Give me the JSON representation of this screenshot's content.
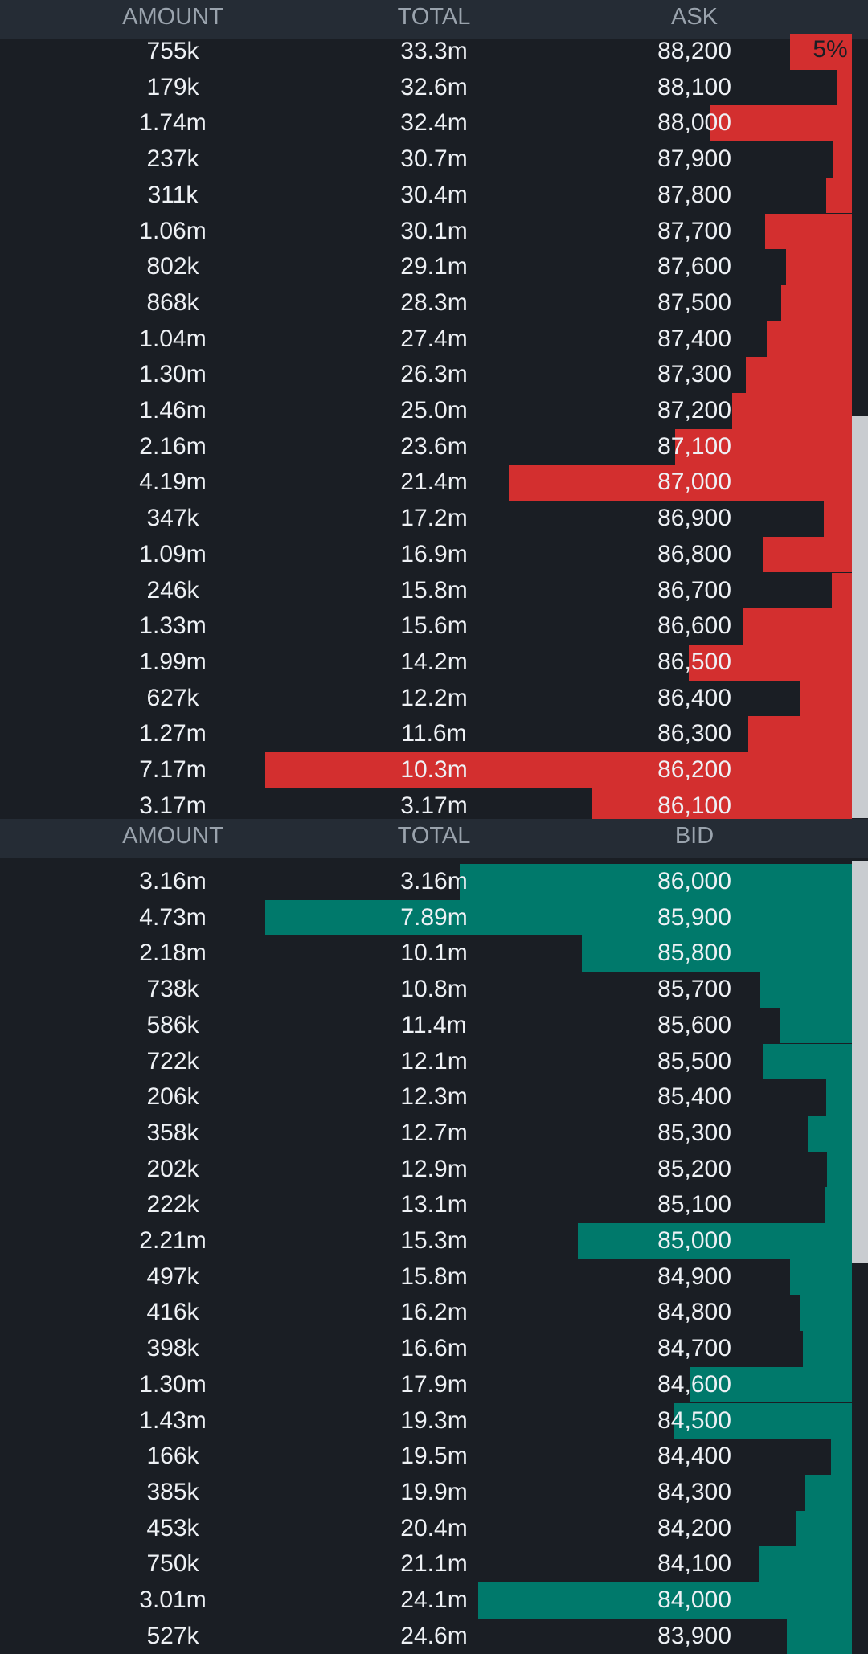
{
  "colors": {
    "ask_bar": "#d32f2f",
    "bid_bar": "#00796b",
    "header_bg": "#252c35",
    "header_text": "#9aa3ad",
    "body_bg": "#1a1e24",
    "text": "#eef1f5"
  },
  "ask_header": {
    "amount": "AMOUNT",
    "total": "TOTAL",
    "price": "ASK"
  },
  "bid_header": {
    "amount": "AMOUNT",
    "total": "TOTAL",
    "price": "BID"
  },
  "first_row_badge": "5%",
  "ask_max_amount_m": 7.17,
  "bid_max_amount_m": 4.73,
  "asks": [
    {
      "amount": "755k",
      "total": "33.3m",
      "price": "88,200",
      "amount_m": 0.755
    },
    {
      "amount": "179k",
      "total": "32.6m",
      "price": "88,100",
      "amount_m": 0.179
    },
    {
      "amount": "1.74m",
      "total": "32.4m",
      "price": "88,000",
      "amount_m": 1.74
    },
    {
      "amount": "237k",
      "total": "30.7m",
      "price": "87,900",
      "amount_m": 0.237
    },
    {
      "amount": "311k",
      "total": "30.4m",
      "price": "87,800",
      "amount_m": 0.311
    },
    {
      "amount": "1.06m",
      "total": "30.1m",
      "price": "87,700",
      "amount_m": 1.06
    },
    {
      "amount": "802k",
      "total": "29.1m",
      "price": "87,600",
      "amount_m": 0.802
    },
    {
      "amount": "868k",
      "total": "28.3m",
      "price": "87,500",
      "amount_m": 0.868
    },
    {
      "amount": "1.04m",
      "total": "27.4m",
      "price": "87,400",
      "amount_m": 1.04
    },
    {
      "amount": "1.30m",
      "total": "26.3m",
      "price": "87,300",
      "amount_m": 1.3
    },
    {
      "amount": "1.46m",
      "total": "25.0m",
      "price": "87,200",
      "amount_m": 1.46
    },
    {
      "amount": "2.16m",
      "total": "23.6m",
      "price": "87,100",
      "amount_m": 2.16
    },
    {
      "amount": "4.19m",
      "total": "21.4m",
      "price": "87,000",
      "amount_m": 4.19
    },
    {
      "amount": "347k",
      "total": "17.2m",
      "price": "86,900",
      "amount_m": 0.347
    },
    {
      "amount": "1.09m",
      "total": "16.9m",
      "price": "86,800",
      "amount_m": 1.09
    },
    {
      "amount": "246k",
      "total": "15.8m",
      "price": "86,700",
      "amount_m": 0.246
    },
    {
      "amount": "1.33m",
      "total": "15.6m",
      "price": "86,600",
      "amount_m": 1.33
    },
    {
      "amount": "1.99m",
      "total": "14.2m",
      "price": "86,500",
      "amount_m": 1.99
    },
    {
      "amount": "627k",
      "total": "12.2m",
      "price": "86,400",
      "amount_m": 0.627
    },
    {
      "amount": "1.27m",
      "total": "11.6m",
      "price": "86,300",
      "amount_m": 1.27
    },
    {
      "amount": "7.17m",
      "total": "10.3m",
      "price": "86,200",
      "amount_m": 7.17
    },
    {
      "amount": "3.17m",
      "total": "3.17m",
      "price": "86,100",
      "amount_m": 3.17
    }
  ],
  "bids": [
    {
      "amount": "3.16m",
      "total": "3.16m",
      "price": "86,000",
      "amount_m": 3.16
    },
    {
      "amount": "4.73m",
      "total": "7.89m",
      "price": "85,900",
      "amount_m": 4.73
    },
    {
      "amount": "2.18m",
      "total": "10.1m",
      "price": "85,800",
      "amount_m": 2.18
    },
    {
      "amount": "738k",
      "total": "10.8m",
      "price": "85,700",
      "amount_m": 0.738
    },
    {
      "amount": "586k",
      "total": "11.4m",
      "price": "85,600",
      "amount_m": 0.586
    },
    {
      "amount": "722k",
      "total": "12.1m",
      "price": "85,500",
      "amount_m": 0.722
    },
    {
      "amount": "206k",
      "total": "12.3m",
      "price": "85,400",
      "amount_m": 0.206
    },
    {
      "amount": "358k",
      "total": "12.7m",
      "price": "85,300",
      "amount_m": 0.358
    },
    {
      "amount": "202k",
      "total": "12.9m",
      "price": "85,200",
      "amount_m": 0.202
    },
    {
      "amount": "222k",
      "total": "13.1m",
      "price": "85,100",
      "amount_m": 0.222
    },
    {
      "amount": "2.21m",
      "total": "15.3m",
      "price": "85,000",
      "amount_m": 2.21
    },
    {
      "amount": "497k",
      "total": "15.8m",
      "price": "84,900",
      "amount_m": 0.497
    },
    {
      "amount": "416k",
      "total": "16.2m",
      "price": "84,800",
      "amount_m": 0.416
    },
    {
      "amount": "398k",
      "total": "16.6m",
      "price": "84,700",
      "amount_m": 0.398
    },
    {
      "amount": "1.30m",
      "total": "17.9m",
      "price": "84,600",
      "amount_m": 1.3
    },
    {
      "amount": "1.43m",
      "total": "19.3m",
      "price": "84,500",
      "amount_m": 1.43
    },
    {
      "amount": "166k",
      "total": "19.5m",
      "price": "84,400",
      "amount_m": 0.166
    },
    {
      "amount": "385k",
      "total": "19.9m",
      "price": "84,300",
      "amount_m": 0.385
    },
    {
      "amount": "453k",
      "total": "20.4m",
      "price": "84,200",
      "amount_m": 0.453
    },
    {
      "amount": "750k",
      "total": "21.1m",
      "price": "84,100",
      "amount_m": 0.75
    },
    {
      "amount": "3.01m",
      "total": "24.1m",
      "price": "84,000",
      "amount_m": 3.01
    },
    {
      "amount": "527k",
      "total": "24.6m",
      "price": "83,900",
      "amount_m": 0.527
    }
  ]
}
